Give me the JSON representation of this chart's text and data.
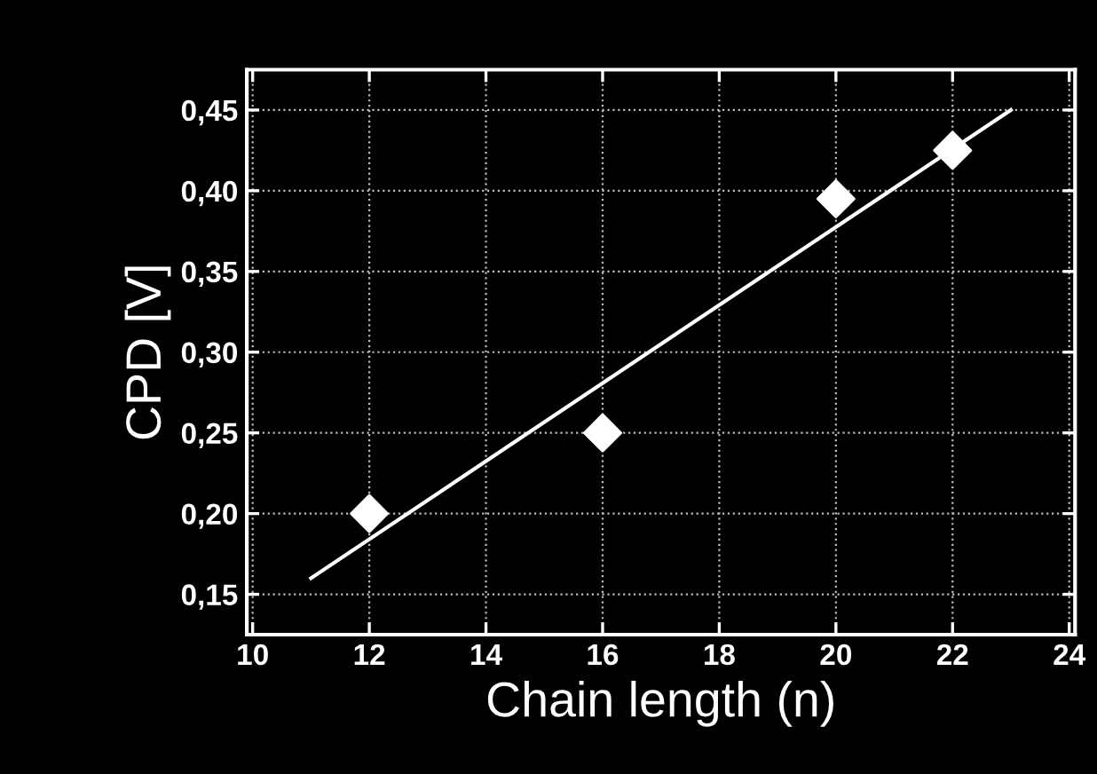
{
  "chart_data": {
    "type": "scatter",
    "xlabel": "Chain length (n)",
    "ylabel": "CPD [V]",
    "xlim": [
      9.9,
      24.1
    ],
    "ylim": [
      0.125,
      0.475
    ],
    "xticks": [
      10,
      12,
      14,
      16,
      18,
      20,
      22,
      24
    ],
    "yticks": [
      {
        "value": 0.15,
        "label": "0,15"
      },
      {
        "value": 0.2,
        "label": "0,20"
      },
      {
        "value": 0.25,
        "label": "0,25"
      },
      {
        "value": 0.3,
        "label": "0,30"
      },
      {
        "value": 0.35,
        "label": "0,35"
      },
      {
        "value": 0.4,
        "label": "0,40"
      },
      {
        "value": 0.45,
        "label": "0,45"
      }
    ],
    "grid": true,
    "marker": "diamond",
    "series": [
      {
        "color": "#ffffff",
        "x": [
          12,
          16,
          20,
          22
        ],
        "values": [
          0.2,
          0.25,
          0.395,
          0.425
        ]
      },
      {
        "type": "line",
        "color": "#ffffff",
        "marker": "none",
        "line_style": "solid",
        "x": [
          11,
          23
        ],
        "values": [
          0.16,
          0.45
        ]
      }
    ]
  }
}
